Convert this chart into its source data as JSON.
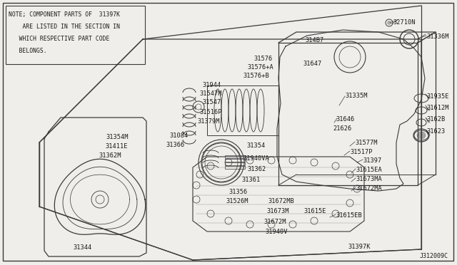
{
  "bg_color": "#f0eeea",
  "line_color": "#3a3a3a",
  "text_color": "#1a1a1a",
  "note_lines": [
    "NOTE; COMPONENT PARTS OF  31397K",
    "    ARE LISTED IN THE SECTION IN",
    "   WHICH RESPECTIVE PART CODE",
    "   BELONGS."
  ],
  "diagram_code": "J312009C",
  "fig_width": 6.4,
  "fig_height": 3.72,
  "dpi": 100
}
